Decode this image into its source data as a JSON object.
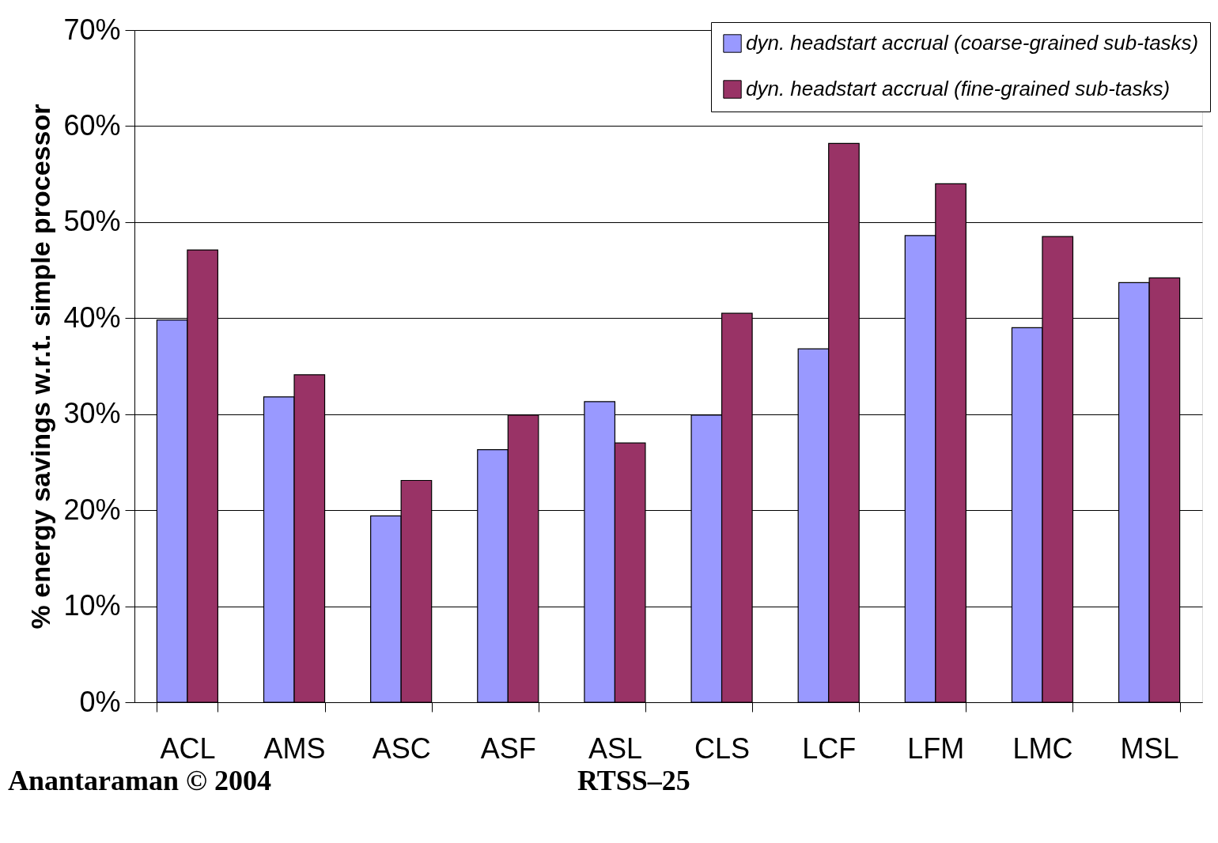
{
  "chart_data": {
    "type": "bar",
    "ylabel": "% energy savings w.r.t. simple processor",
    "categories": [
      "ACL",
      "AMS",
      "ASC",
      "ASF",
      "ASL",
      "CLS",
      "LCF",
      "LFM",
      "LMC",
      "MSL"
    ],
    "series": [
      {
        "name": "dyn. headstart accrual (coarse-grained sub-tasks)",
        "color": "#9999ff",
        "values": [
          39.8,
          31.8,
          19.4,
          26.3,
          31.3,
          29.9,
          36.8,
          48.6,
          39.0,
          43.7
        ]
      },
      {
        "name": "dyn. headstart accrual (fine-grained sub-tasks)",
        "color": "#993366",
        "values": [
          47.1,
          34.1,
          23.1,
          29.9,
          27.0,
          40.5,
          58.2,
          54.0,
          48.5,
          44.2
        ]
      }
    ],
    "ylim": [
      0,
      70
    ],
    "yticks": [
      {
        "value": 0,
        "label": "0%"
      },
      {
        "value": 10,
        "label": "10%"
      },
      {
        "value": 20,
        "label": "20%"
      },
      {
        "value": 30,
        "label": "30%"
      },
      {
        "value": 40,
        "label": "40%"
      },
      {
        "value": 50,
        "label": "50%"
      },
      {
        "value": 60,
        "label": "60%"
      },
      {
        "value": 70,
        "label": "70%"
      }
    ],
    "grid": "y",
    "legend": "top right",
    "annotations": [
      "Anantaraman © 2004",
      "RTSS–25"
    ]
  }
}
